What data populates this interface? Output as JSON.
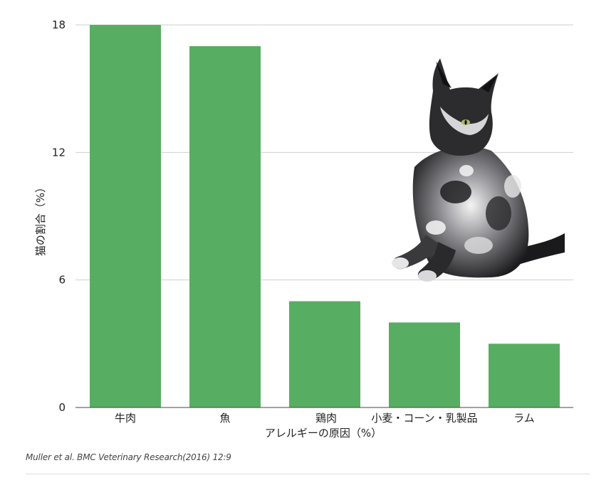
{
  "chart_data": {
    "type": "bar",
    "categories": [
      "牛肉",
      "魚",
      "鶏肉",
      "小麦・コーン・乳製品",
      "ラム"
    ],
    "values": [
      18,
      17,
      5,
      4,
      3
    ],
    "ylim": [
      0,
      18
    ],
    "yticks": [
      0,
      6,
      12,
      18
    ],
    "xlabel": "アレルギーの原因（%）",
    "ylabel": "猫の割合（%）",
    "grid": true,
    "bar_color": "#57ae62",
    "grid_color": "#cfcfcf",
    "axis_color": "#444444"
  },
  "illustration": {
    "name": "cat-photo",
    "colors": [
      "#1c1c1e",
      "#f2f2f2",
      "#8a8a8e"
    ]
  },
  "caption": "Muller et al. BMC Veterinary Research(2016) 12:9"
}
